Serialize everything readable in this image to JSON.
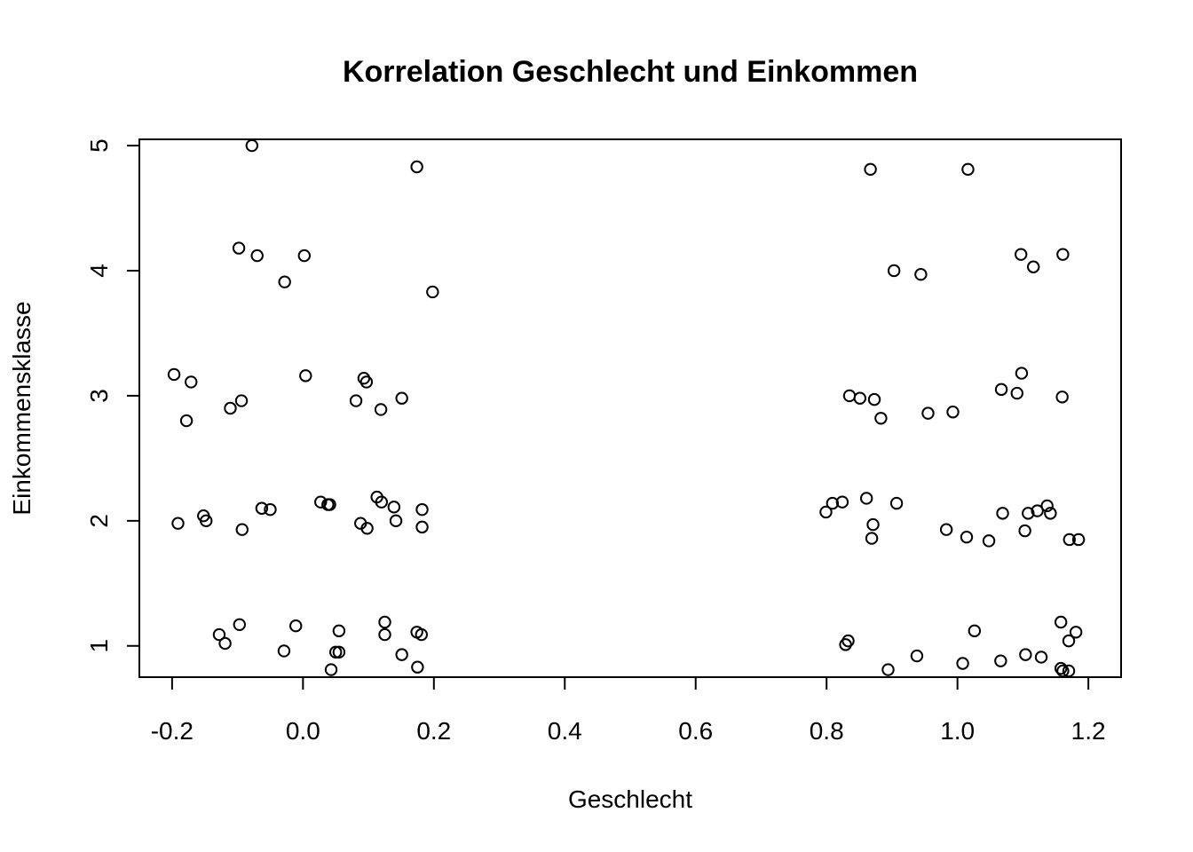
{
  "chart_data": {
    "type": "scatter",
    "title": "Korrelation Geschlecht und Einkommen",
    "xlabel": "Geschlecht",
    "ylabel": "Einkommensklasse",
    "xlim": [
      -0.25,
      1.25
    ],
    "ylim": [
      0.75,
      5.05
    ],
    "x_ticks": [
      -0.2,
      0.0,
      0.2,
      0.4,
      0.6,
      0.8,
      1.0,
      1.2
    ],
    "x_tick_labels": [
      "-0.2",
      "0.0",
      "0.2",
      "0.4",
      "0.6",
      "0.8",
      "1.0",
      "1.2"
    ],
    "y_ticks": [
      1,
      2,
      3,
      4,
      5
    ],
    "y_tick_labels": [
      "1",
      "2",
      "3",
      "4",
      "5"
    ],
    "grid": false,
    "marker": "open-circle",
    "points": [
      {
        "x": -0.078,
        "y": 5.0
      },
      {
        "x": 0.174,
        "y": 4.83
      },
      {
        "x": -0.098,
        "y": 4.18
      },
      {
        "x": -0.07,
        "y": 4.12
      },
      {
        "x": 0.002,
        "y": 4.12
      },
      {
        "x": -0.028,
        "y": 3.91
      },
      {
        "x": 0.198,
        "y": 3.83
      },
      {
        "x": -0.197,
        "y": 3.17
      },
      {
        "x": -0.171,
        "y": 3.11
      },
      {
        "x": -0.178,
        "y": 2.8
      },
      {
        "x": -0.111,
        "y": 2.9
      },
      {
        "x": -0.094,
        "y": 2.96
      },
      {
        "x": 0.004,
        "y": 3.16
      },
      {
        "x": 0.093,
        "y": 3.14
      },
      {
        "x": 0.097,
        "y": 3.11
      },
      {
        "x": 0.081,
        "y": 2.96
      },
      {
        "x": 0.119,
        "y": 2.89
      },
      {
        "x": 0.151,
        "y": 2.98
      },
      {
        "x": -0.191,
        "y": 1.98
      },
      {
        "x": -0.152,
        "y": 2.04
      },
      {
        "x": -0.148,
        "y": 2.0
      },
      {
        "x": -0.093,
        "y": 1.93
      },
      {
        "x": -0.063,
        "y": 2.1
      },
      {
        "x": -0.05,
        "y": 2.09
      },
      {
        "x": 0.027,
        "y": 2.15
      },
      {
        "x": 0.038,
        "y": 2.13
      },
      {
        "x": 0.041,
        "y": 2.13
      },
      {
        "x": 0.088,
        "y": 1.98
      },
      {
        "x": 0.098,
        "y": 1.94
      },
      {
        "x": 0.113,
        "y": 2.19
      },
      {
        "x": 0.12,
        "y": 2.15
      },
      {
        "x": 0.139,
        "y": 2.11
      },
      {
        "x": 0.142,
        "y": 2.0
      },
      {
        "x": 0.182,
        "y": 2.09
      },
      {
        "x": 0.182,
        "y": 1.95
      },
      {
        "x": -0.128,
        "y": 1.09
      },
      {
        "x": -0.119,
        "y": 1.02
      },
      {
        "x": -0.097,
        "y": 1.17
      },
      {
        "x": -0.029,
        "y": 0.96
      },
      {
        "x": -0.011,
        "y": 1.16
      },
      {
        "x": 0.043,
        "y": 0.81
      },
      {
        "x": 0.05,
        "y": 0.95
      },
      {
        "x": 0.055,
        "y": 0.95
      },
      {
        "x": 0.055,
        "y": 1.12
      },
      {
        "x": 0.125,
        "y": 1.19
      },
      {
        "x": 0.125,
        "y": 1.09
      },
      {
        "x": 0.151,
        "y": 0.93
      },
      {
        "x": 0.174,
        "y": 1.11
      },
      {
        "x": 0.181,
        "y": 1.09
      },
      {
        "x": 0.175,
        "y": 0.83
      },
      {
        "x": 0.867,
        "y": 4.81
      },
      {
        "x": 1.016,
        "y": 4.81
      },
      {
        "x": 0.903,
        "y": 4.0
      },
      {
        "x": 0.944,
        "y": 3.97
      },
      {
        "x": 1.097,
        "y": 4.13
      },
      {
        "x": 1.116,
        "y": 4.03
      },
      {
        "x": 1.161,
        "y": 4.13
      },
      {
        "x": 0.835,
        "y": 3.0
      },
      {
        "x": 0.851,
        "y": 2.98
      },
      {
        "x": 0.873,
        "y": 2.97
      },
      {
        "x": 0.883,
        "y": 2.82
      },
      {
        "x": 0.955,
        "y": 2.86
      },
      {
        "x": 0.993,
        "y": 2.87
      },
      {
        "x": 1.067,
        "y": 3.05
      },
      {
        "x": 1.091,
        "y": 3.02
      },
      {
        "x": 1.098,
        "y": 3.18
      },
      {
        "x": 1.16,
        "y": 2.99
      },
      {
        "x": 0.799,
        "y": 2.07
      },
      {
        "x": 0.809,
        "y": 2.14
      },
      {
        "x": 0.824,
        "y": 2.15
      },
      {
        "x": 0.861,
        "y": 2.18
      },
      {
        "x": 0.871,
        "y": 1.97
      },
      {
        "x": 0.869,
        "y": 1.86
      },
      {
        "x": 0.907,
        "y": 2.14
      },
      {
        "x": 0.983,
        "y": 1.93
      },
      {
        "x": 1.014,
        "y": 1.87
      },
      {
        "x": 1.048,
        "y": 1.84
      },
      {
        "x": 1.069,
        "y": 2.06
      },
      {
        "x": 1.103,
        "y": 1.92
      },
      {
        "x": 1.108,
        "y": 2.06
      },
      {
        "x": 1.122,
        "y": 2.08
      },
      {
        "x": 1.137,
        "y": 2.12
      },
      {
        "x": 1.142,
        "y": 2.06
      },
      {
        "x": 1.171,
        "y": 1.85
      },
      {
        "x": 1.185,
        "y": 1.85
      },
      {
        "x": 0.829,
        "y": 1.01
      },
      {
        "x": 0.833,
        "y": 1.04
      },
      {
        "x": 0.894,
        "y": 0.81
      },
      {
        "x": 0.938,
        "y": 0.92
      },
      {
        "x": 1.008,
        "y": 0.86
      },
      {
        "x": 1.026,
        "y": 1.12
      },
      {
        "x": 1.066,
        "y": 0.88
      },
      {
        "x": 1.104,
        "y": 0.93
      },
      {
        "x": 1.128,
        "y": 0.91
      },
      {
        "x": 1.158,
        "y": 1.19
      },
      {
        "x": 1.17,
        "y": 1.04
      },
      {
        "x": 1.181,
        "y": 1.11
      },
      {
        "x": 1.158,
        "y": 0.82
      },
      {
        "x": 1.161,
        "y": 0.8
      },
      {
        "x": 1.17,
        "y": 0.8
      }
    ]
  }
}
